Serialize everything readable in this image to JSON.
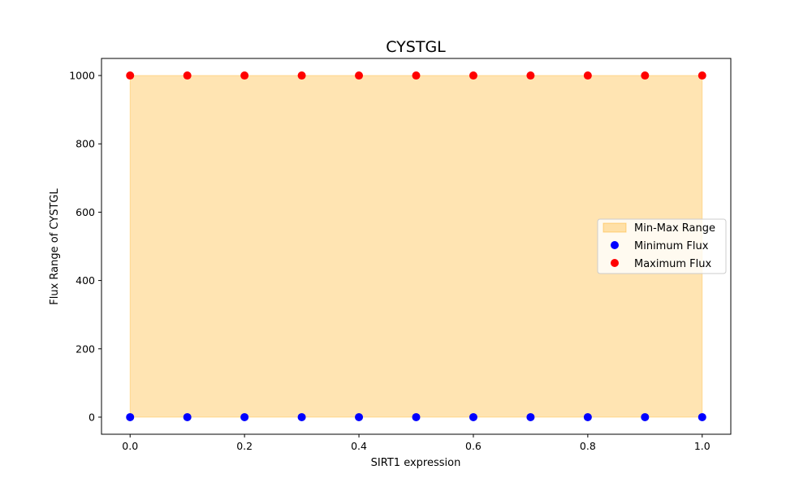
{
  "chart_data": {
    "type": "scatter",
    "title": "CYSTGL",
    "xlabel": "SIRT1 expression",
    "ylabel": "Flux Range of CYSTGL",
    "x": [
      0.0,
      0.1,
      0.2,
      0.3,
      0.4,
      0.5,
      0.6,
      0.7,
      0.8,
      0.9,
      1.0
    ],
    "series": [
      {
        "name": "Minimum Flux",
        "values": [
          0,
          0,
          0,
          0,
          0,
          0,
          0,
          0,
          0,
          0,
          0
        ],
        "color": "#0000ff"
      },
      {
        "name": "Maximum Flux",
        "values": [
          1000,
          1000,
          1000,
          1000,
          1000,
          1000,
          1000,
          1000,
          1000,
          1000,
          1000
        ],
        "color": "#ff0000"
      }
    ],
    "range_fill": {
      "name": "Min-Max Range",
      "color": "#ffa500",
      "opacity": 0.3
    },
    "xlim": [
      -0.05,
      1.05
    ],
    "ylim": [
      -50,
      1050
    ],
    "xticks": [
      0.0,
      0.2,
      0.4,
      0.6,
      0.8,
      1.0
    ],
    "xtick_labels": [
      "0.0",
      "0.2",
      "0.4",
      "0.6",
      "0.8",
      "1.0"
    ],
    "yticks": [
      0,
      200,
      400,
      600,
      800,
      1000
    ],
    "ytick_labels": [
      "0",
      "200",
      "400",
      "600",
      "800",
      "1000"
    ],
    "legend_position": "center-right",
    "grid": false
  }
}
